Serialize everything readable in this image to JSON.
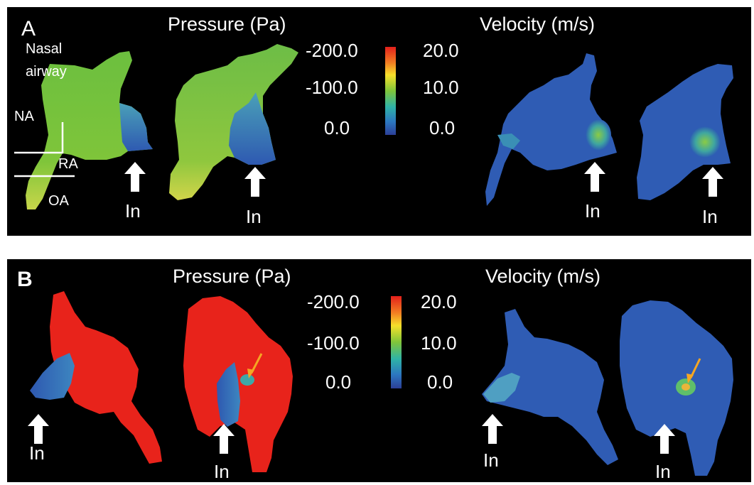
{
  "panel_a": {
    "letter": "A",
    "pressure_heading": "Pressure (Pa)",
    "velocity_heading": "Velocity (m/s)",
    "pressure_scale": [
      "-200.0",
      "-100.0",
      "0.0"
    ],
    "velocity_scale": [
      "20.0",
      "10.0",
      "0.0"
    ],
    "region_labels": {
      "nasal": "Nasal",
      "airway": "airway",
      "na": "NA",
      "ra": "RA",
      "oa": "OA"
    },
    "inlet_label": "In"
  },
  "panel_b": {
    "letter": "B",
    "pressure_heading": "Pressure (Pa)",
    "velocity_heading": "Velocity (m/s)",
    "pressure_scale": [
      "-200.0",
      "-100.0",
      "0.0"
    ],
    "velocity_scale": [
      "20.0",
      "10.0",
      "0.0"
    ],
    "inlet_label": "In"
  },
  "colors": {
    "background": "#000000",
    "low_blue": "#2f5fb5",
    "mid_green": "#79c33a",
    "high_red": "#e8231b",
    "arrow_orange": "#f5a623",
    "label_white": "#ffffff"
  }
}
